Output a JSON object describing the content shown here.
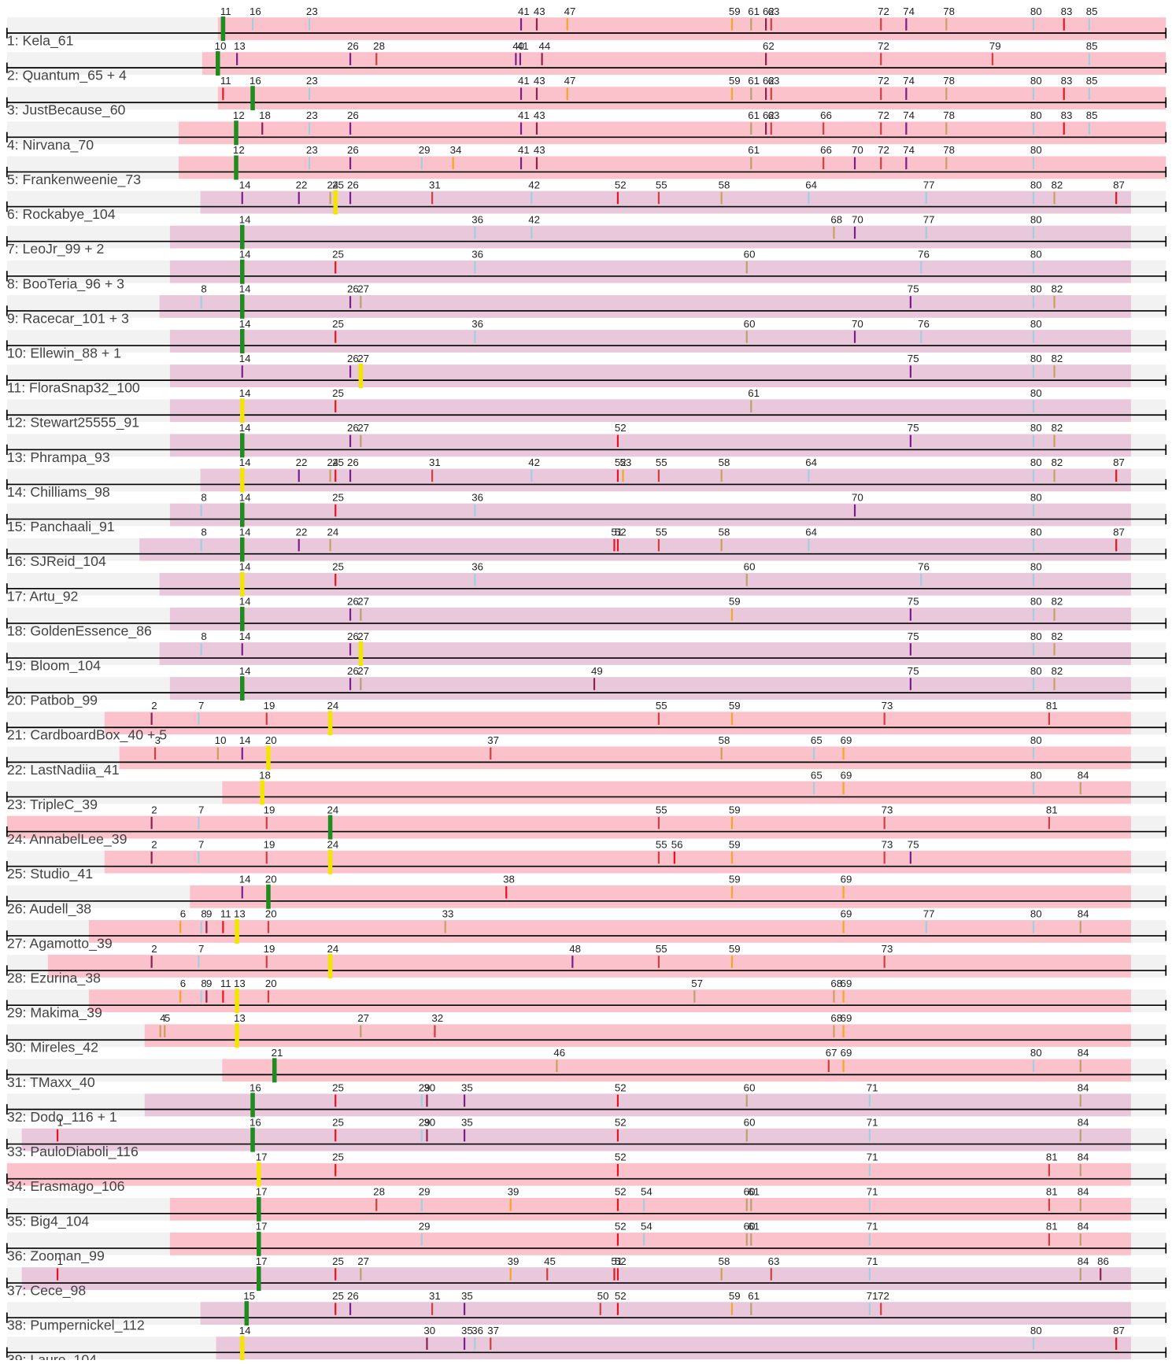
{
  "rows": [
    {
      "label": "1: Kela_61",
      "phams": [
        "11",
        "16",
        "23",
        "41",
        "43",
        "47",
        "59",
        "61",
        "62",
        "63",
        "72",
        "74",
        "78",
        "80",
        "83",
        "85"
      ]
    },
    {
      "label": "2: Quantum_65 + 4",
      "phams": [
        "10",
        "13",
        "26",
        "28",
        "40",
        "41",
        "44",
        "62",
        "72",
        "79",
        "85"
      ]
    },
    {
      "label": "3: JustBecause_60",
      "phams": [
        "11",
        "16",
        "23",
        "41",
        "43",
        "47",
        "59",
        "61",
        "62",
        "63",
        "72",
        "74",
        "78",
        "80",
        "83",
        "85"
      ]
    },
    {
      "label": "4: Nirvana_70",
      "phams": [
        "12",
        "18",
        "23",
        "26",
        "41",
        "43",
        "61",
        "62",
        "63",
        "66",
        "72",
        "74",
        "78",
        "80",
        "83",
        "85"
      ]
    },
    {
      "label": "5: Frankenweenie_73",
      "phams": [
        "12",
        "23",
        "26",
        "29",
        "34",
        "41",
        "43",
        "61",
        "66",
        "70",
        "72",
        "74",
        "78",
        "80"
      ]
    },
    {
      "label": "6: Rockabye_104",
      "phams": [
        "14",
        "22",
        "24",
        "25",
        "26",
        "31",
        "42",
        "52",
        "55",
        "58",
        "64",
        "77",
        "80",
        "82",
        "87"
      ]
    },
    {
      "label": "7: LeoJr_99 + 2",
      "phams": [
        "14",
        "36",
        "42",
        "68",
        "70",
        "77",
        "80"
      ]
    },
    {
      "label": "8: BooTeria_96 + 3",
      "phams": [
        "14",
        "25",
        "36",
        "60",
        "76",
        "80"
      ]
    },
    {
      "label": "9: Racecar_101 + 3",
      "phams": [
        "8",
        "14",
        "26",
        "27",
        "75",
        "80",
        "82"
      ]
    },
    {
      "label": "10: Ellewin_88 + 1",
      "phams": [
        "14",
        "25",
        "36",
        "60",
        "70",
        "76",
        "80"
      ]
    },
    {
      "label": "11: FloraSnap32_100",
      "phams": [
        "14",
        "26",
        "27",
        "75",
        "80",
        "82"
      ]
    },
    {
      "label": "12: Stewart25555_91",
      "phams": [
        "14",
        "25",
        "61",
        "80"
      ]
    },
    {
      "label": "13: Phrampa_93",
      "phams": [
        "14",
        "26",
        "27",
        "52",
        "75",
        "80",
        "82"
      ]
    },
    {
      "label": "14: Chilliams_98",
      "phams": [
        "14",
        "22",
        "24",
        "25",
        "26",
        "31",
        "42",
        "52",
        "53",
        "55",
        "58",
        "64",
        "80",
        "82",
        "87"
      ]
    },
    {
      "label": "15: Panchaali_91",
      "phams": [
        "8",
        "14",
        "25",
        "36",
        "70",
        "80"
      ]
    },
    {
      "label": "16: SJReid_104",
      "phams": [
        "8",
        "14",
        "22",
        "24",
        "51",
        "52",
        "55",
        "58",
        "64",
        "80",
        "87"
      ]
    },
    {
      "label": "17: Artu_92",
      "phams": [
        "14",
        "25",
        "36",
        "60",
        "76",
        "80"
      ]
    },
    {
      "label": "18: GoldenEssence_86",
      "phams": [
        "14",
        "26",
        "27",
        "59",
        "75",
        "80",
        "82"
      ]
    },
    {
      "label": "19: Bloom_104",
      "phams": [
        "8",
        "14",
        "26",
        "27",
        "75",
        "80",
        "82"
      ]
    },
    {
      "label": "20: Patbob_99",
      "phams": [
        "14",
        "26",
        "27",
        "49",
        "75",
        "80",
        "82"
      ]
    },
    {
      "label": "21: CardboardBox_40 + 5",
      "phams": [
        "2",
        "7",
        "19",
        "24",
        "55",
        "59",
        "73",
        "81"
      ]
    },
    {
      "label": "22: LastNadiia_41",
      "phams": [
        "3",
        "10",
        "14",
        "20",
        "37",
        "58",
        "65",
        "69",
        "80"
      ]
    },
    {
      "label": "23: TripleC_39",
      "phams": [
        "18",
        "65",
        "69",
        "80",
        "84"
      ]
    },
    {
      "label": "24: AnnabelLee_39",
      "phams": [
        "2",
        "7",
        "19",
        "24",
        "55",
        "59",
        "73",
        "81"
      ]
    },
    {
      "label": "25: Studio_41",
      "phams": [
        "2",
        "7",
        "19",
        "24",
        "55",
        "56",
        "59",
        "73",
        "75"
      ]
    },
    {
      "label": "26: Audell_38",
      "phams": [
        "14",
        "20",
        "38",
        "59",
        "69"
      ]
    },
    {
      "label": "27: Agamotto_39",
      "phams": [
        "6",
        "8",
        "9",
        "11",
        "13",
        "20",
        "33",
        "69",
        "77",
        "80",
        "84"
      ]
    },
    {
      "label": "28: Ezurina_38",
      "phams": [
        "2",
        "7",
        "19",
        "24",
        "48",
        "55",
        "59",
        "73"
      ]
    },
    {
      "label": "29: Makima_39",
      "phams": [
        "6",
        "8",
        "9",
        "11",
        "13",
        "20",
        "57",
        "68",
        "69"
      ]
    },
    {
      "label": "30: Mireles_42",
      "phams": [
        "4",
        "5",
        "13",
        "27",
        "32",
        "68",
        "69"
      ]
    },
    {
      "label": "31: TMaxx_40",
      "phams": [
        "21",
        "46",
        "67",
        "69",
        "80",
        "84"
      ]
    },
    {
      "label": "32: Dodo_116 + 1",
      "phams": [
        "16",
        "25",
        "29",
        "30",
        "35",
        "52",
        "60",
        "71",
        "84"
      ]
    },
    {
      "label": "33: PauloDiaboli_116",
      "phams": [
        "1",
        "16",
        "25",
        "29",
        "30",
        "35",
        "52",
        "60",
        "71",
        "84"
      ]
    },
    {
      "label": "34: Erasmago_106",
      "phams": [
        "17",
        "25",
        "52",
        "71",
        "81",
        "84"
      ]
    },
    {
      "label": "35: Big4_104",
      "phams": [
        "17",
        "28",
        "29",
        "39",
        "52",
        "54",
        "60",
        "61",
        "71",
        "81",
        "84"
      ]
    },
    {
      "label": "36: Zooman_99",
      "phams": [
        "17",
        "29",
        "52",
        "54",
        "60",
        "61",
        "71",
        "81",
        "84"
      ]
    },
    {
      "label": "37: Cece_98",
      "phams": [
        "1",
        "17",
        "25",
        "27",
        "39",
        "45",
        "51",
        "52",
        "58",
        "63",
        "71",
        "84",
        "86"
      ]
    },
    {
      "label": "38: Pumpernickel_112",
      "phams": [
        "15",
        "25",
        "26",
        "31",
        "35",
        "50",
        "52",
        "59",
        "61",
        "71",
        "72"
      ]
    },
    {
      "label": "39: Laure_104",
      "phams": [
        "14",
        "30",
        "35",
        "36",
        "37",
        "80",
        "87"
      ]
    }
  ]
}
